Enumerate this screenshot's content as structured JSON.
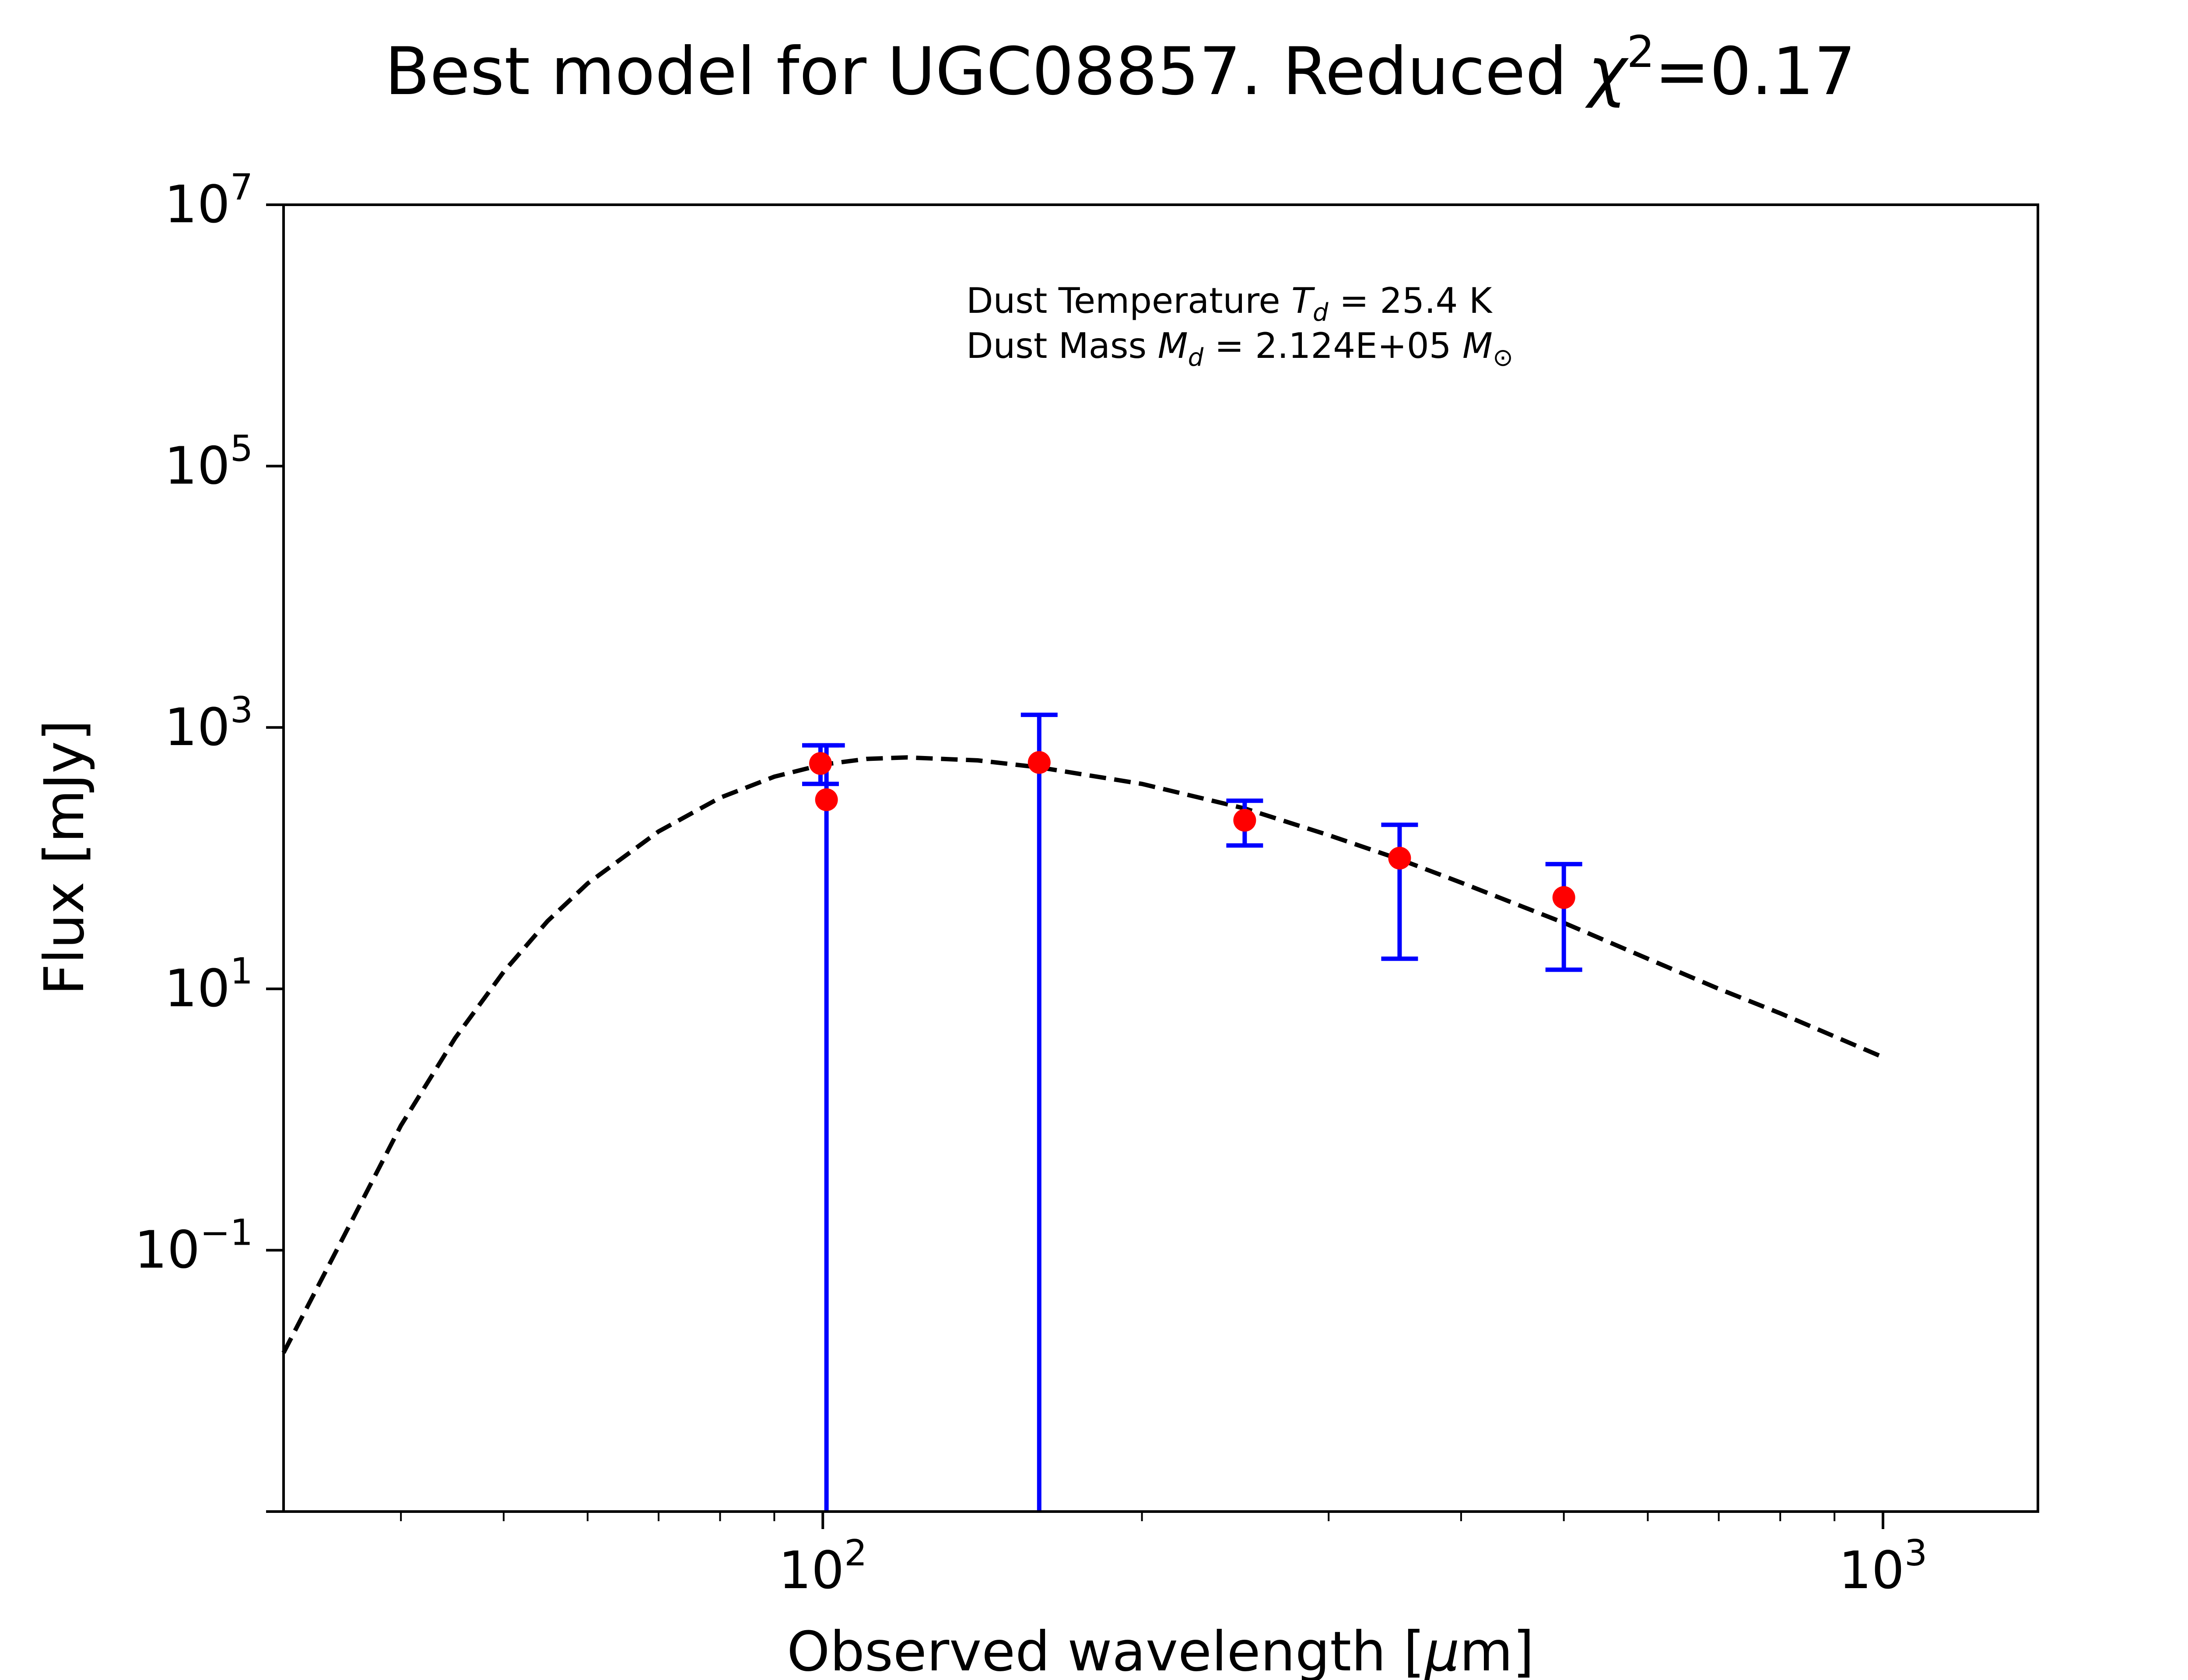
{
  "chart_data": {
    "type": "scatter",
    "title_prefix": "Best model for UGC08857. Reduced ",
    "title_symbol": "χ",
    "title_exponent": "2",
    "title_suffix": "=0.17",
    "xlabel_prefix": "Observed wavelength [",
    "xlabel_mu": "μ",
    "xlabel_suffix": "m]",
    "ylabel": "Flux [mJy]",
    "xscale": "log",
    "yscale": "log",
    "xlim": [
      31,
      1400
    ],
    "ylim": [
      0.001,
      10000000
    ],
    "grid": false,
    "x_ticks": [
      {
        "value": 100,
        "base": "10",
        "exp": "2"
      },
      {
        "value": 1000,
        "base": "10",
        "exp": "3"
      }
    ],
    "y_ticks": [
      {
        "value": 0.1,
        "base": "10",
        "exp": "−1"
      },
      {
        "value": 10,
        "base": "10",
        "exp": "1"
      },
      {
        "value": 1000,
        "base": "10",
        "exp": "3"
      },
      {
        "value": 100000,
        "base": "10",
        "exp": "5"
      },
      {
        "value": 10000000,
        "base": "10",
        "exp": "7"
      }
    ],
    "annotations": {
      "temperature": {
        "prefix": "Dust Temperature ",
        "symbol": "T",
        "sub": "d",
        "suffix": " = 25.4 K"
      },
      "mass": {
        "prefix": "Dust Mass ",
        "symbol": "M",
        "sub": "d",
        "value": " = 2.124E+05 ",
        "unit_symbol": "M",
        "unit_sub": "⊙"
      }
    },
    "model_curve": {
      "style": "dashed",
      "color": "#000000",
      "x": [
        31,
        35,
        40,
        45,
        50,
        55,
        60,
        70,
        80,
        90,
        100,
        110,
        120,
        140,
        160,
        200,
        250,
        300,
        350,
        400,
        500,
        600,
        700,
        800,
        1000
      ],
      "y": [
        0.0164,
        0.11,
        0.9,
        4.2,
        13.5,
        33,
        64,
        160,
        290,
        420,
        520,
        575,
        590,
        560,
        495,
        370,
        240,
        150,
        98,
        65,
        32,
        17,
        10,
        6.5,
        3.0
      ]
    },
    "observations": {
      "marker_color": "#ff0000",
      "errorbar_color": "#0000ff",
      "points": [
        {
          "x": 99.5,
          "y": 530,
          "yerr_low": 370,
          "yerr_high": 730
        },
        {
          "x": 100.8,
          "y": 280,
          "yerr_low": 0.001,
          "yerr_high": 730
        },
        {
          "x": 160,
          "y": 540,
          "yerr_low": 0.001,
          "yerr_high": 1250
        },
        {
          "x": 250,
          "y": 195,
          "yerr_low": 125,
          "yerr_high": 275
        },
        {
          "x": 350,
          "y": 100,
          "yerr_low": 17,
          "yerr_high": 180
        },
        {
          "x": 500,
          "y": 50,
          "yerr_low": 14,
          "yerr_high": 90
        }
      ]
    }
  }
}
